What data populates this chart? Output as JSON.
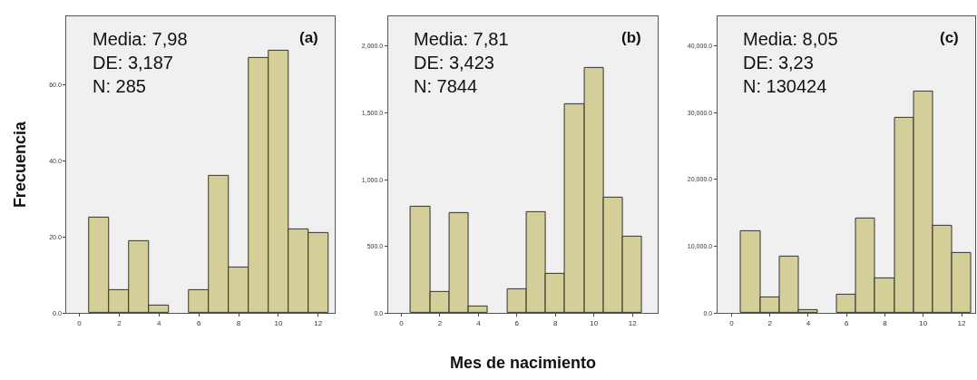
{
  "chart_data": [
    {
      "type": "histogram",
      "ylabel": "Frecuencia",
      "color": "#d4cf98",
      "grid": false,
      "bins": [
        0.5,
        1.5,
        2.5,
        3.5,
        4.5,
        5.5,
        6.5,
        7.5,
        8.5,
        9.5,
        10.5,
        11.5,
        12.5
      ],
      "values": [
        25,
        6,
        19,
        2,
        0,
        6,
        36,
        12,
        67,
        69,
        22,
        21
      ],
      "xlim": [
        -0.65,
        12.85
      ],
      "xticks": [
        0,
        2,
        4,
        6,
        8,
        10,
        12
      ],
      "ylim": [
        0,
        78
      ],
      "yticks": [
        {
          "value": 0,
          "label": "0.0"
        },
        {
          "value": 20,
          "label": "20.0"
        },
        {
          "value": 40,
          "label": "40.0"
        },
        {
          "value": 60,
          "label": "60.0"
        }
      ],
      "annotations": [
        "Media: 7,98",
        "DE: 3,187",
        "N: 285",
        "(a)"
      ]
    },
    {
      "type": "histogram",
      "xlabel": "Mes de nacimiento",
      "color": "#d4cf98",
      "grid": false,
      "bins": [
        0.5,
        1.5,
        2.5,
        3.5,
        4.5,
        5.5,
        6.5,
        7.5,
        8.5,
        9.5,
        10.5,
        11.5,
        12.5
      ],
      "values": [
        800,
        160,
        750,
        50,
        0,
        180,
        755,
        295,
        1565,
        1840,
        865,
        575
      ],
      "xlim": [
        -0.7,
        13.3
      ],
      "xticks": [
        0,
        2,
        4,
        6,
        8,
        10,
        12
      ],
      "ylim": [
        0,
        2225
      ],
      "yticks": [
        {
          "value": 0,
          "label": "0.0"
        },
        {
          "value": 500,
          "label": "500.0"
        },
        {
          "value": 1000,
          "label": "1,000.0"
        },
        {
          "value": 1500,
          "label": "1,500.0"
        },
        {
          "value": 2000,
          "label": "2,000.0"
        }
      ],
      "annotations": [
        "Media: 7,81",
        "DE: 3,423",
        "N: 7844",
        "(b)"
      ]
    },
    {
      "type": "histogram",
      "color": "#d4cf98",
      "grid": false,
      "bins": [
        0.5,
        1.5,
        2.5,
        3.5,
        4.5,
        5.5,
        6.5,
        7.5,
        8.5,
        9.5,
        10.5,
        11.5,
        12.5
      ],
      "values": [
        12300,
        2400,
        8400,
        500,
        0,
        2700,
        14100,
        5200,
        29200,
        33100,
        13100,
        9000
      ],
      "xlim": [
        -0.75,
        12.7
      ],
      "xticks": [
        0,
        2,
        4,
        6,
        8,
        10,
        12
      ],
      "ylim": [
        0,
        44400
      ],
      "yticks": [
        {
          "value": 0,
          "label": "0.0"
        },
        {
          "value": 10000,
          "label": "10,000.0"
        },
        {
          "value": 20000,
          "label": "20,000.0"
        },
        {
          "value": 30000,
          "label": "30,000.0"
        },
        {
          "value": 40000,
          "label": "40,000.0"
        }
      ],
      "annotations": [
        "Media: 8,05",
        "DE: 3,23",
        "N: 130424",
        "(c)"
      ]
    }
  ]
}
